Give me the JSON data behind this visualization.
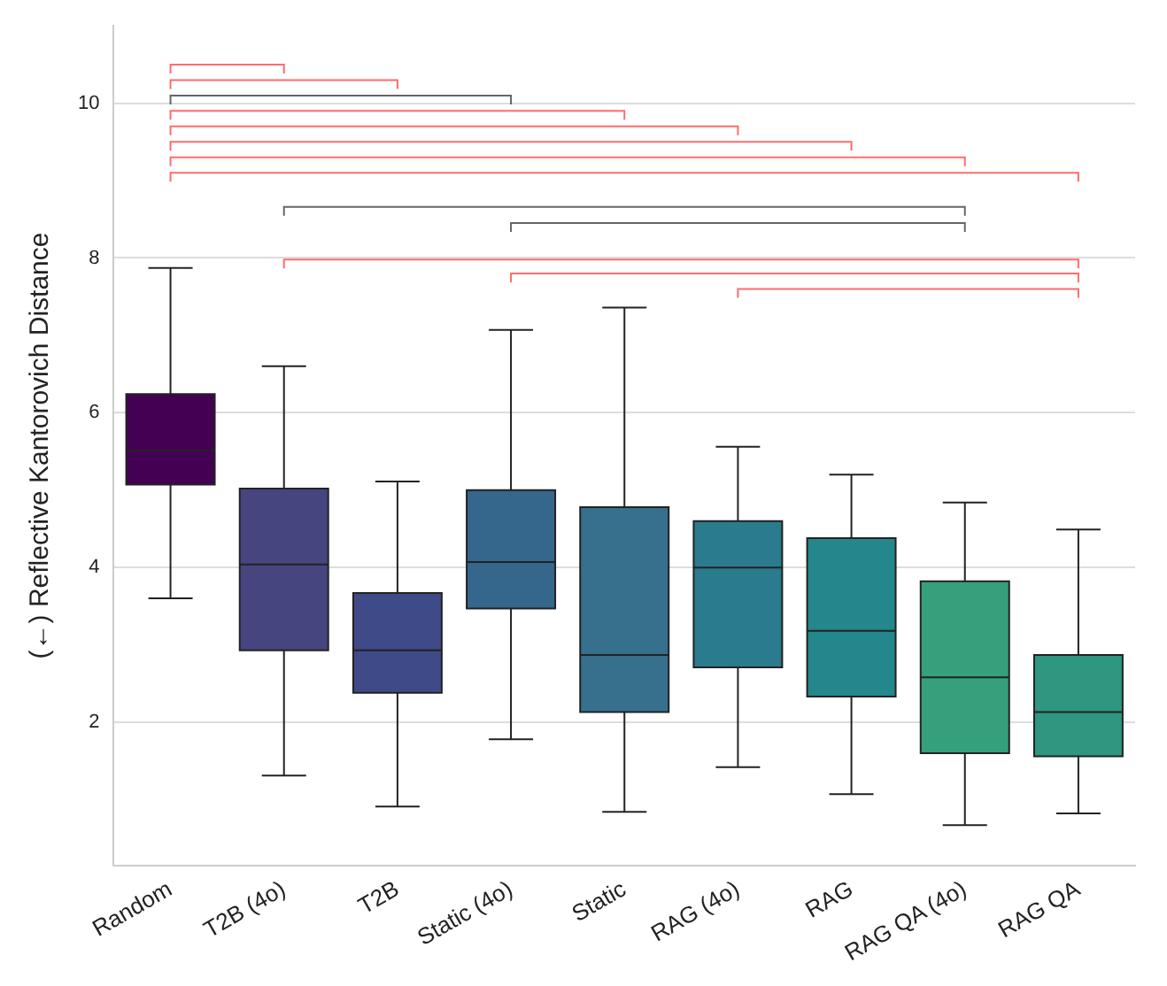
{
  "chart_data": {
    "type": "box",
    "ylabel": "(←) Reflective Kantorovich Distance",
    "categories": [
      "Random",
      "T2B (4o)",
      "T2B",
      "Static (4o)",
      "Static",
      "RAG (4o)",
      "RAG",
      "RAG QA (4o)",
      "RAG QA"
    ],
    "colors": [
      "#440154",
      "#46457f",
      "#3f4a88",
      "#34678b",
      "#36708c",
      "#2a7b8d",
      "#24878c",
      "#35a07b",
      "#2f967f"
    ],
    "boxes": [
      {
        "low": 3.6,
        "q1": 5.07,
        "median": 5.51,
        "q3": 6.24,
        "high": 7.87
      },
      {
        "low": 1.31,
        "q1": 2.93,
        "median": 4.04,
        "q3": 5.02,
        "high": 6.6
      },
      {
        "low": 0.91,
        "q1": 2.38,
        "median": 2.93,
        "q3": 3.67,
        "high": 5.11
      },
      {
        "low": 1.78,
        "q1": 3.47,
        "median": 4.07,
        "q3": 5.0,
        "high": 7.07
      },
      {
        "low": 0.84,
        "q1": 2.13,
        "median": 2.87,
        "q3": 4.78,
        "high": 7.36
      },
      {
        "low": 1.42,
        "q1": 2.71,
        "median": 4.0,
        "q3": 4.6,
        "high": 5.56
      },
      {
        "low": 1.07,
        "q1": 2.33,
        "median": 3.18,
        "q3": 4.38,
        "high": 5.2
      },
      {
        "low": 0.67,
        "q1": 1.6,
        "median": 2.58,
        "q3": 3.82,
        "high": 4.84
      },
      {
        "low": 0.82,
        "q1": 1.56,
        "median": 2.13,
        "q3": 2.87,
        "high": 4.49
      }
    ],
    "ylim": [
      0.15,
      11
    ],
    "yticks": [
      2,
      4,
      6,
      8,
      10
    ],
    "grid": "y"
  }
}
